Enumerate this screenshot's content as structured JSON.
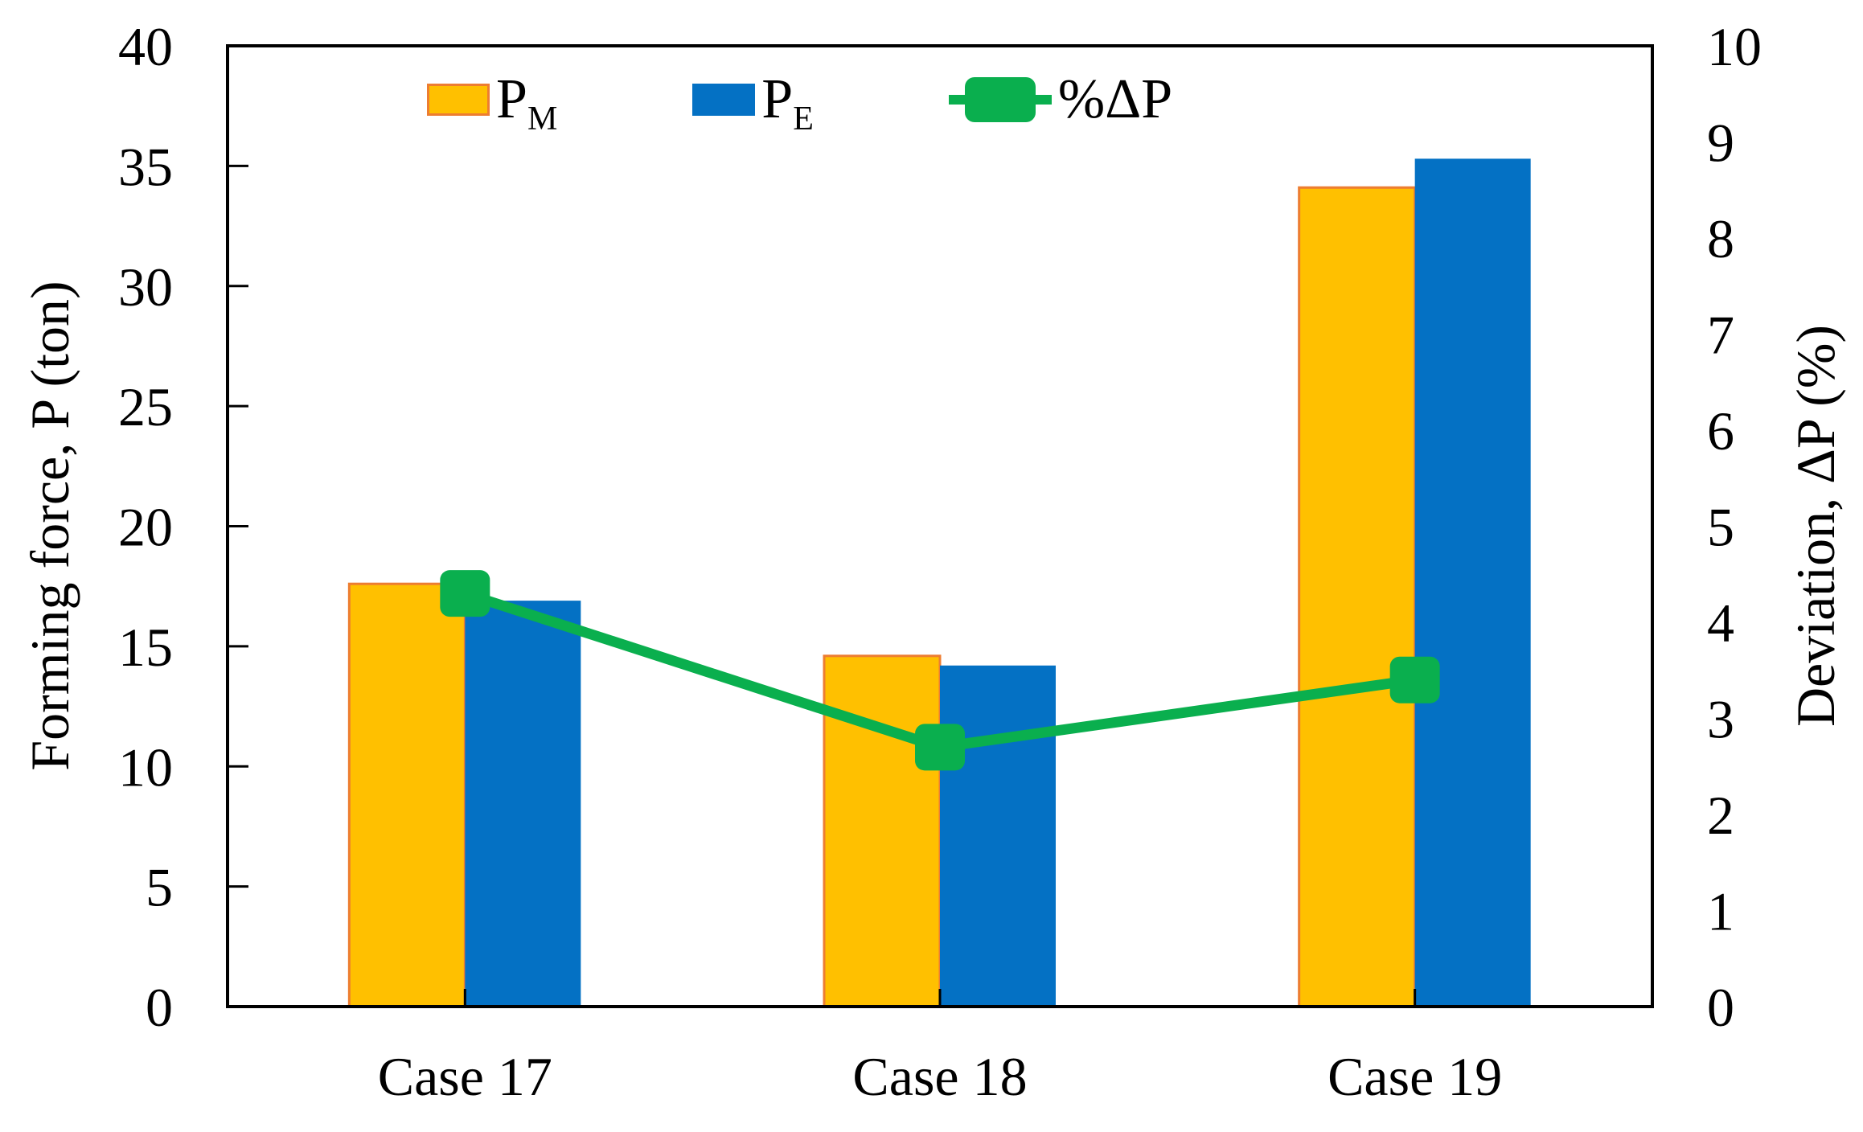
{
  "page": {
    "background": "#ffffff"
  },
  "colors": {
    "pm_fill": "#FFC000",
    "pm_border": "#ED7D31",
    "pe_fill": "#0471C4",
    "line_green": "#0AAF4E",
    "axis_black": "#000000"
  },
  "legend": {
    "items": [
      {
        "base": "P",
        "sub": "M"
      },
      {
        "base": "P",
        "sub": "E"
      },
      {
        "label": "%ΔP"
      }
    ]
  },
  "chart_data": {
    "type": "bar+line combo",
    "title": "",
    "categories": [
      "Case 17",
      "Case 18",
      "Case 19"
    ],
    "series": [
      {
        "name": "P_M",
        "type": "bar",
        "axis": "left",
        "color": "#FFC000",
        "border_color": "#ED7D31",
        "values": [
          17.6,
          14.6,
          34.1
        ]
      },
      {
        "name": "P_E",
        "type": "bar",
        "axis": "left",
        "color": "#0471C4",
        "values": [
          16.9,
          14.2,
          35.3
        ]
      },
      {
        "name": "%ΔP",
        "type": "line",
        "axis": "right",
        "color": "#0AAF4E",
        "marker": "rounded-square",
        "values": [
          4.3,
          2.7,
          3.4
        ]
      }
    ],
    "left_axis": {
      "label": "Forming force, P (ton)",
      "min": 0,
      "max": 40,
      "step": 5,
      "tick_labels": [
        "0",
        "5",
        "10",
        "15",
        "20",
        "25",
        "30",
        "35",
        "40"
      ]
    },
    "right_axis": {
      "label": "Deviation, ΔP (%)",
      "min": 0,
      "max": 10,
      "step": 1,
      "tick_labels": [
        "0",
        "1",
        "2",
        "3",
        "4",
        "5",
        "6",
        "7",
        "8",
        "9",
        "10"
      ]
    },
    "x_axis": {
      "tick_position": "category-center"
    },
    "legend_position": "top-inside",
    "grid": false
  }
}
